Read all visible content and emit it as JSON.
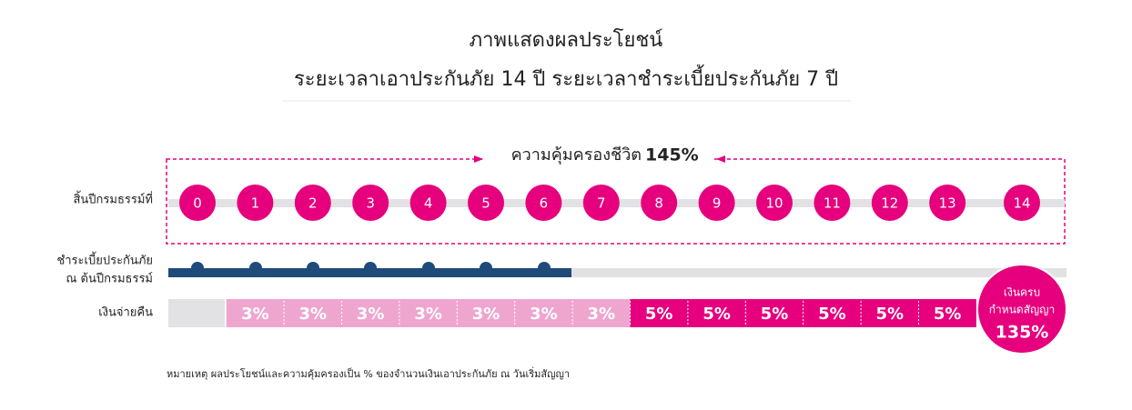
{
  "header": {
    "title": "ภาพแสดงผลประโยชน์",
    "subtitle": "ระยะเวลาเอาประกันภัย 14 ปี ระยะเวลาชำระเบี้ยประกันภัย 7 ปี"
  },
  "coverage": {
    "label": "ความคุ้มครองชีวิต",
    "value": "145%"
  },
  "years": {
    "label": "สิ้นปีกรมธรรม์ที่",
    "items": [
      "0",
      "1",
      "2",
      "3",
      "4",
      "5",
      "6",
      "7",
      "8",
      "9",
      "10",
      "11",
      "12",
      "13",
      "14"
    ]
  },
  "premium": {
    "label": [
      "ชำระเบี้ยประกันภัย",
      "ณ ต้นปีกรมธรรม์"
    ]
  },
  "cashback": {
    "label": "เงินจ่ายคืน",
    "items": [
      "3%",
      "3%",
      "3%",
      "3%",
      "3%",
      "3%",
      "3%",
      "5%",
      "5%",
      "5%",
      "5%",
      "5%",
      "5%"
    ]
  },
  "maturity": {
    "lines": [
      "เงินครบ",
      "กำหนดสัญญา"
    ],
    "value": "135%"
  },
  "note": "หมายเหตุ ผลประโยชน์และความคุ้มครองเป็น % ของจำนวนเงินเอาประกันภัย ณ วันเริ่มสัญญา"
}
